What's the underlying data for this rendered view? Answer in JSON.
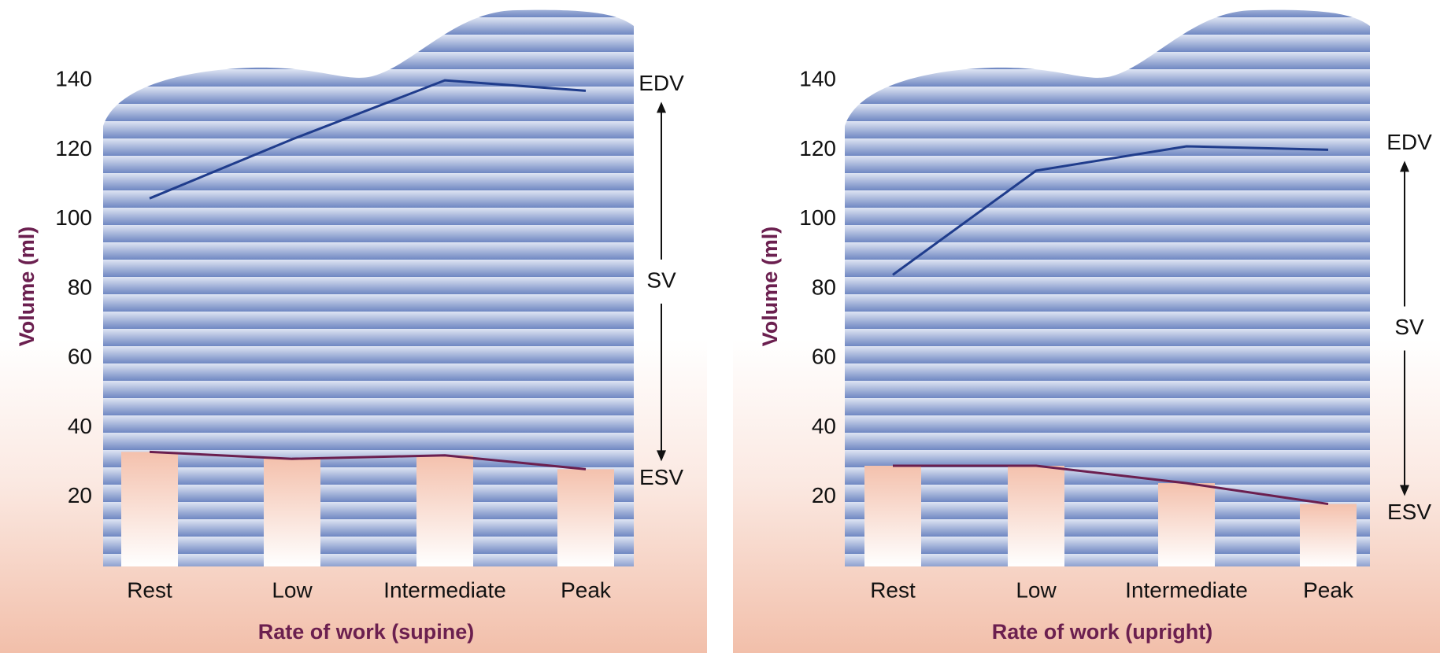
{
  "chart_data": [
    {
      "type": "line",
      "xlabel": "Rate of work (supine)",
      "ylabel": "Volume (ml)",
      "categories": [
        "Rest",
        "Low",
        "Intermediate",
        "Peak"
      ],
      "series": [
        {
          "name": "EDV",
          "color": "#1f3c8c",
          "values": [
            106,
            123,
            140,
            137
          ]
        },
        {
          "name": "ESV",
          "color": "#6b1f4f",
          "values": [
            33,
            31,
            32,
            28
          ]
        }
      ],
      "annotation": "SV",
      "ylim": [
        0,
        150
      ],
      "yticks": [
        20,
        40,
        60,
        80,
        100,
        120,
        140
      ]
    },
    {
      "type": "line",
      "xlabel": "Rate of work (upright)",
      "ylabel": "Volume (ml)",
      "categories": [
        "Rest",
        "Low",
        "Intermediate",
        "Peak"
      ],
      "series": [
        {
          "name": "EDV",
          "color": "#1f3c8c",
          "values": [
            84,
            114,
            121,
            120
          ]
        },
        {
          "name": "ESV",
          "color": "#6b1f4f",
          "values": [
            29,
            29,
            24,
            18
          ]
        }
      ],
      "annotation": "SV",
      "ylim": [
        0,
        150
      ],
      "yticks": [
        20,
        40,
        60,
        80,
        100,
        120,
        140
      ]
    }
  ]
}
